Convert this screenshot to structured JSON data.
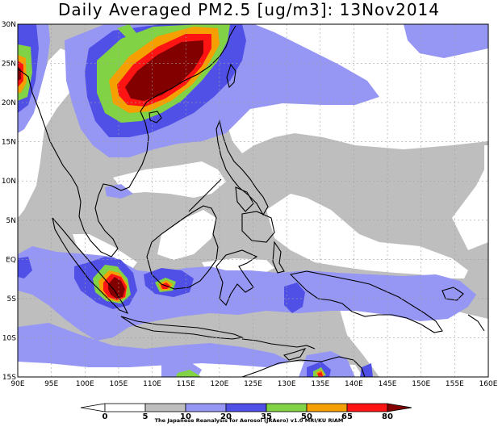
{
  "title": "Daily Averaged PM2.5 [ug/m3]: 13Nov2014",
  "axes": {
    "lon_labels": [
      "90E",
      "95E",
      "100E",
      "105E",
      "110E",
      "115E",
      "120E",
      "125E",
      "130E",
      "135E",
      "140E",
      "145E",
      "150E",
      "155E",
      "160E"
    ],
    "lat_labels": [
      "30N",
      "25N",
      "20N",
      "15N",
      "10N",
      "5N",
      "EQ",
      "5S",
      "10S",
      "15S"
    ],
    "lon_range": [
      90,
      160
    ],
    "lat_range": [
      -15,
      30
    ],
    "grid": true
  },
  "colorbar": {
    "levels": [
      "0",
      "5",
      "10",
      "20",
      "35",
      "50",
      "65",
      "80"
    ],
    "colors": [
      "#ffffff",
      "#ffffff",
      "#bebebe",
      "#9696f5",
      "#5050e6",
      "#82d246",
      "#f5a000",
      "#ff1414",
      "#820000"
    ]
  },
  "colors": {
    "c10": "#bebebe",
    "c20": "#9696f5",
    "c35": "#5050e6",
    "c50": "#82d246",
    "c65": "#f5a000",
    "c80": "#ff1414",
    "cmax": "#820000"
  },
  "credit": "The Japanese Reanalysis for Aerosol (JRAero) v1.0 MRI/KU RIAM"
}
